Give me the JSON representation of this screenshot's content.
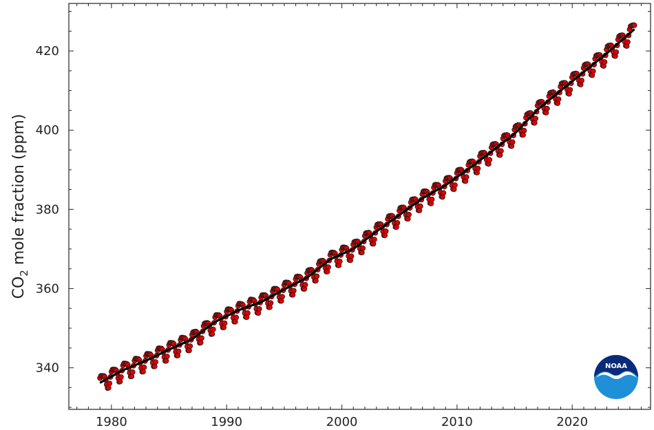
{
  "colors": {
    "point_fill": "#e00000",
    "point_edge": "#1a1a1a",
    "trend_line": "#000000",
    "axis": "#222222",
    "noaa_sky": "#0a2a7a",
    "noaa_sea": "#1f8fd8"
  },
  "chart_data": {
    "type": "scatter",
    "ylabel_main": "CO",
    "ylabel_sub": "2",
    "ylabel_rest": " mole fraction (ppm)",
    "xlim": [
      1976.3,
      2026.8
    ],
    "ylim": [
      329.5,
      432.0
    ],
    "x_ticks": [
      1980,
      1990,
      2000,
      2010,
      2020
    ],
    "y_ticks": [
      340,
      360,
      380,
      400,
      420
    ],
    "x_minor_step": 1,
    "y_minor_step": 5,
    "grid": false,
    "legend": "none",
    "series": [
      {
        "kind": "monthly_points",
        "x_start": 1979.0,
        "x_end": 2025.4,
        "step": 0.0833,
        "seasonal_amplitude": 2.0
      },
      {
        "kind": "trend_line",
        "x": [
          1979.0,
          1981,
          1983,
          1985,
          1987,
          1989,
          1991,
          1993,
          1995,
          1997,
          1999,
          2001,
          2003,
          2005,
          2007,
          2009,
          2011,
          2013,
          2015,
          2017,
          2019,
          2021,
          2023,
          2025.4
        ],
        "y": [
          336.2,
          339.4,
          341.8,
          344.6,
          347.2,
          351.6,
          354.5,
          356.6,
          359.8,
          362.8,
          367.4,
          370.0,
          374.4,
          378.6,
          382.8,
          386.1,
          390.2,
          394.6,
          399.1,
          405.2,
          410.0,
          414.7,
          419.4,
          425.5
        ]
      }
    ]
  },
  "logo": {
    "text": "NOAA"
  }
}
